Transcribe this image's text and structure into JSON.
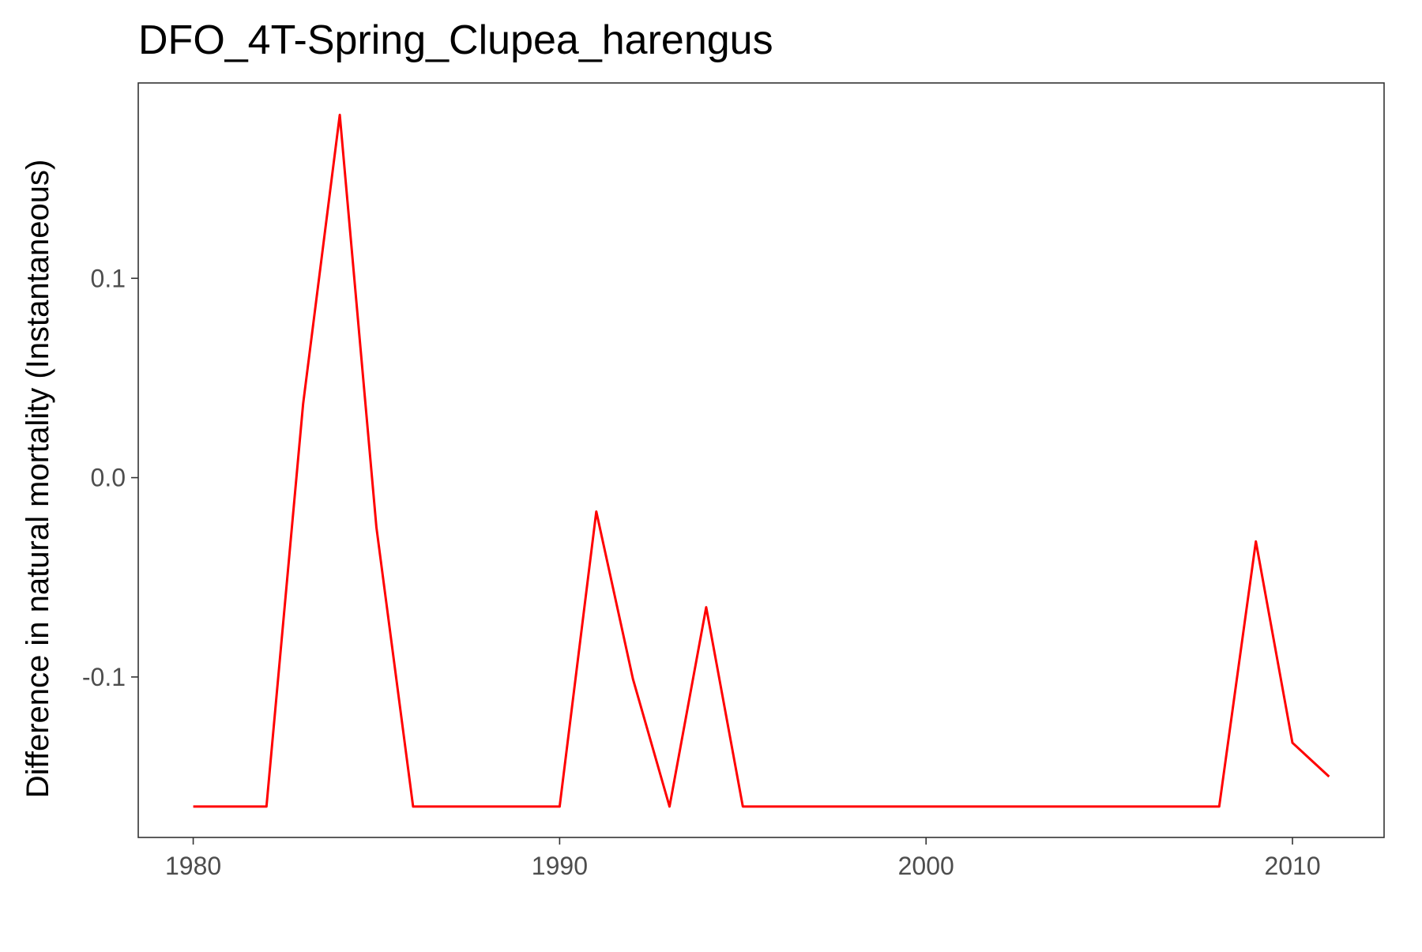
{
  "chart_data": {
    "type": "line",
    "title": "DFO_4T-Spring_Clupea_harengus",
    "xlabel": "",
    "ylabel": "Difference in natural mortality (Instantaneous)",
    "xlim": [
      1978.5,
      2012.5
    ],
    "ylim": [
      -0.1805,
      0.198
    ],
    "x_ticks": [
      1980,
      1990,
      2000,
      2010
    ],
    "x_tick_labels": [
      "1980",
      "1990",
      "2000",
      "2010"
    ],
    "y_ticks": [
      -0.1,
      0.0,
      0.1
    ],
    "y_tick_labels": [
      "-0.1",
      "0.0",
      "0.1"
    ],
    "grid": false,
    "series": [
      {
        "color": "#ff0000",
        "x": [
          1980,
          1981,
          1982,
          1983,
          1984,
          1985,
          1986,
          1987,
          1988,
          1989,
          1990,
          1991,
          1992,
          1993,
          1994,
          1995,
          1996,
          1997,
          1998,
          1999,
          2000,
          2001,
          2002,
          2003,
          2004,
          2005,
          2006,
          2007,
          2008,
          2009,
          2010,
          2011
        ],
        "y": [
          -0.165,
          -0.165,
          -0.165,
          0.037,
          0.182,
          -0.025,
          -0.165,
          -0.165,
          -0.165,
          -0.165,
          -0.165,
          -0.017,
          -0.101,
          -0.165,
          -0.065,
          -0.165,
          -0.165,
          -0.165,
          -0.165,
          -0.165,
          -0.165,
          -0.165,
          -0.165,
          -0.165,
          -0.165,
          -0.165,
          -0.165,
          -0.165,
          -0.165,
          -0.032,
          -0.133,
          -0.15
        ]
      }
    ]
  }
}
